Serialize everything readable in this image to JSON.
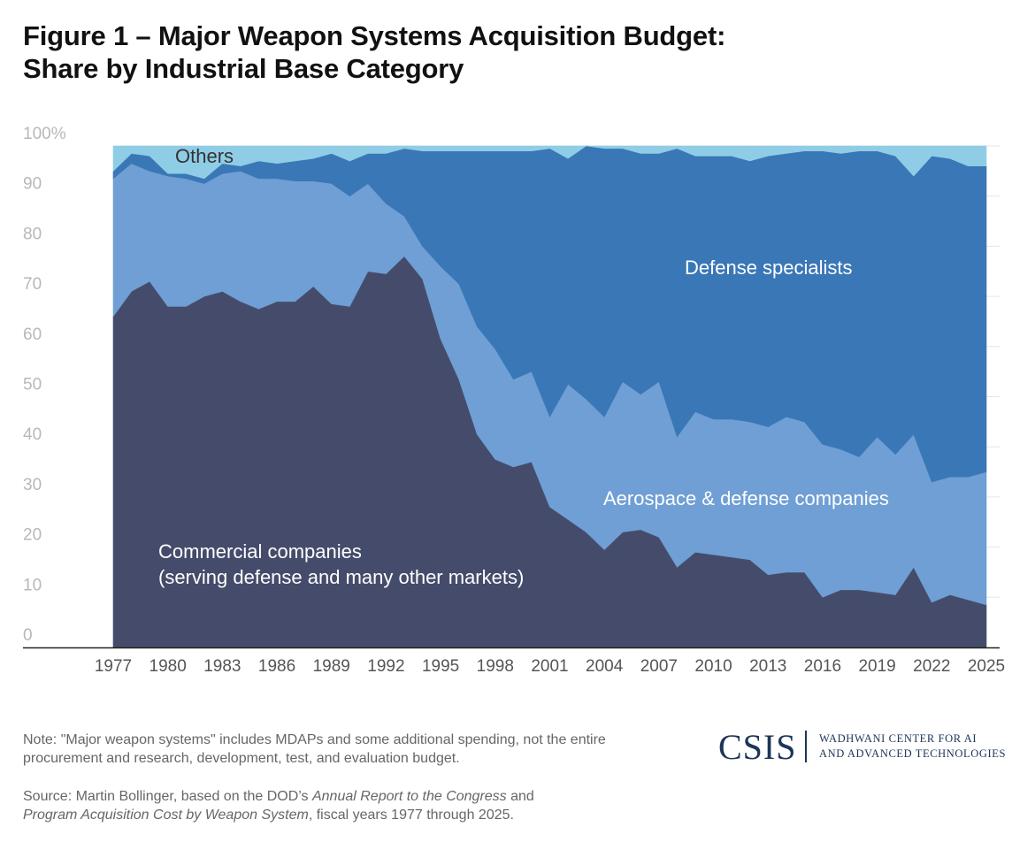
{
  "title": {
    "line1": "Figure 1 – Major Weapon Systems Acquisition Budget:",
    "line2": "Share by Industrial Base Category"
  },
  "chart_data": {
    "type": "area",
    "stacked": true,
    "x": [
      1977,
      1978,
      1979,
      1980,
      1981,
      1982,
      1983,
      1984,
      1985,
      1986,
      1987,
      1988,
      1989,
      1990,
      1991,
      1992,
      1993,
      1994,
      1995,
      1996,
      1997,
      1998,
      1999,
      2000,
      2001,
      2002,
      2003,
      2004,
      2005,
      2006,
      2007,
      2008,
      2009,
      2010,
      2011,
      2012,
      2013,
      2014,
      2015,
      2016,
      2017,
      2018,
      2019,
      2020,
      2021,
      2022,
      2023,
      2024,
      2025
    ],
    "x_tick_labels": [
      "1977",
      "1980",
      "1983",
      "1986",
      "1989",
      "1992",
      "1995",
      "1998",
      "2001",
      "2004",
      "2007",
      "2010",
      "2013",
      "2016",
      "2019",
      "2022",
      "2025"
    ],
    "y_tick_labels": [
      "100%",
      "90",
      "80",
      "70",
      "60",
      "50",
      "40",
      "30",
      "20",
      "10",
      "0"
    ],
    "ylim": [
      0,
      100
    ],
    "grid": true,
    "series": [
      {
        "name": "Commercial companies (serving defense and many other markets)",
        "label_lines": [
          "Commercial companies",
          "(serving defense and many other markets)"
        ],
        "color": "#454c6b",
        "label_color": "#ffffff",
        "values": [
          66,
          71,
          73,
          68,
          68,
          70,
          71,
          69,
          67.5,
          69,
          69,
          72,
          68.5,
          68,
          75,
          74.5,
          78,
          73.5,
          61.5,
          53.5,
          42.5,
          37.5,
          36,
          37,
          28,
          25.5,
          23,
          19.5,
          23,
          23.5,
          22,
          16,
          19,
          18.5,
          18,
          17.5,
          14.5,
          15,
          15,
          10,
          11.5,
          11.5,
          11,
          10.5,
          16,
          9,
          10.5,
          9.5,
          8.5
        ]
      },
      {
        "name": "Aerospace & defense companies",
        "label_lines": [
          "Aerospace & defense companies"
        ],
        "color": "#6f9fd4",
        "label_color": "#ffffff",
        "values": [
          27.5,
          25.5,
          22,
          26,
          25.5,
          22.5,
          23.5,
          26,
          26,
          24.5,
          24,
          21,
          24,
          22,
          17.5,
          14,
          8,
          6.5,
          14.5,
          19,
          21.5,
          22,
          17.5,
          18,
          18,
          27,
          26.5,
          26.5,
          30,
          27,
          31,
          26,
          28,
          27,
          27.5,
          27.5,
          29.5,
          31,
          30,
          30.5,
          28,
          26.5,
          31,
          28,
          26.5,
          24,
          23.5,
          24.5,
          26.5
        ]
      },
      {
        "name": "Defense specialists",
        "label_lines": [
          "Defense specialists"
        ],
        "color": "#3a77b6",
        "label_color": "#ffffff",
        "values": [
          1.5,
          2,
          3,
          0.5,
          1,
          1,
          2,
          1,
          3.5,
          3,
          4,
          4.5,
          6,
          7,
          6,
          10,
          13.5,
          19,
          23,
          26.5,
          35,
          39.5,
          45.5,
          44,
          53.5,
          45,
          50.5,
          53.5,
          46.5,
          48,
          45.5,
          57.5,
          51,
          52.5,
          52.5,
          52,
          54,
          52.5,
          54,
          58.5,
          59,
          61,
          57,
          59.5,
          51.5,
          65,
          63.5,
          62,
          61
        ]
      },
      {
        "name": "Others",
        "label_lines": [
          "Others"
        ],
        "color": "#8fcde6",
        "label_color": "#333333",
        "values": [
          5,
          1.5,
          2,
          5.5,
          5.5,
          6.5,
          3.5,
          4,
          3,
          3.5,
          3,
          2.5,
          1.5,
          3,
          1.5,
          1.5,
          0.5,
          1,
          1.5,
          1,
          1,
          1,
          1,
          1,
          0.5,
          2.5,
          0,
          0.5,
          0.5,
          1.5,
          1.5,
          0.5,
          2,
          2,
          2,
          3,
          2,
          1.5,
          1,
          1,
          1.5,
          1,
          1,
          2,
          6,
          2,
          2.5,
          4,
          4
        ]
      }
    ]
  },
  "note": "Note: \"Major weapon systems\" includes MDAPs and some additional spending, not the entire procurement and research, development, test, and evaluation budget.",
  "source": {
    "prefix": "Source: Martin Bollinger, based on the DOD’s ",
    "italic1": "Annual Report to the Congress",
    "mid": " and ",
    "italic2": "Program Acquisition Cost by Weapon System",
    "suffix": ", fiscal years 1977 through 2025."
  },
  "logo": {
    "wordmark": "CSIS",
    "line1": "WADHWANI CENTER FOR AI",
    "line2": "AND ADVANCED TECHNOLOGIES",
    "color": "#1d3557"
  }
}
